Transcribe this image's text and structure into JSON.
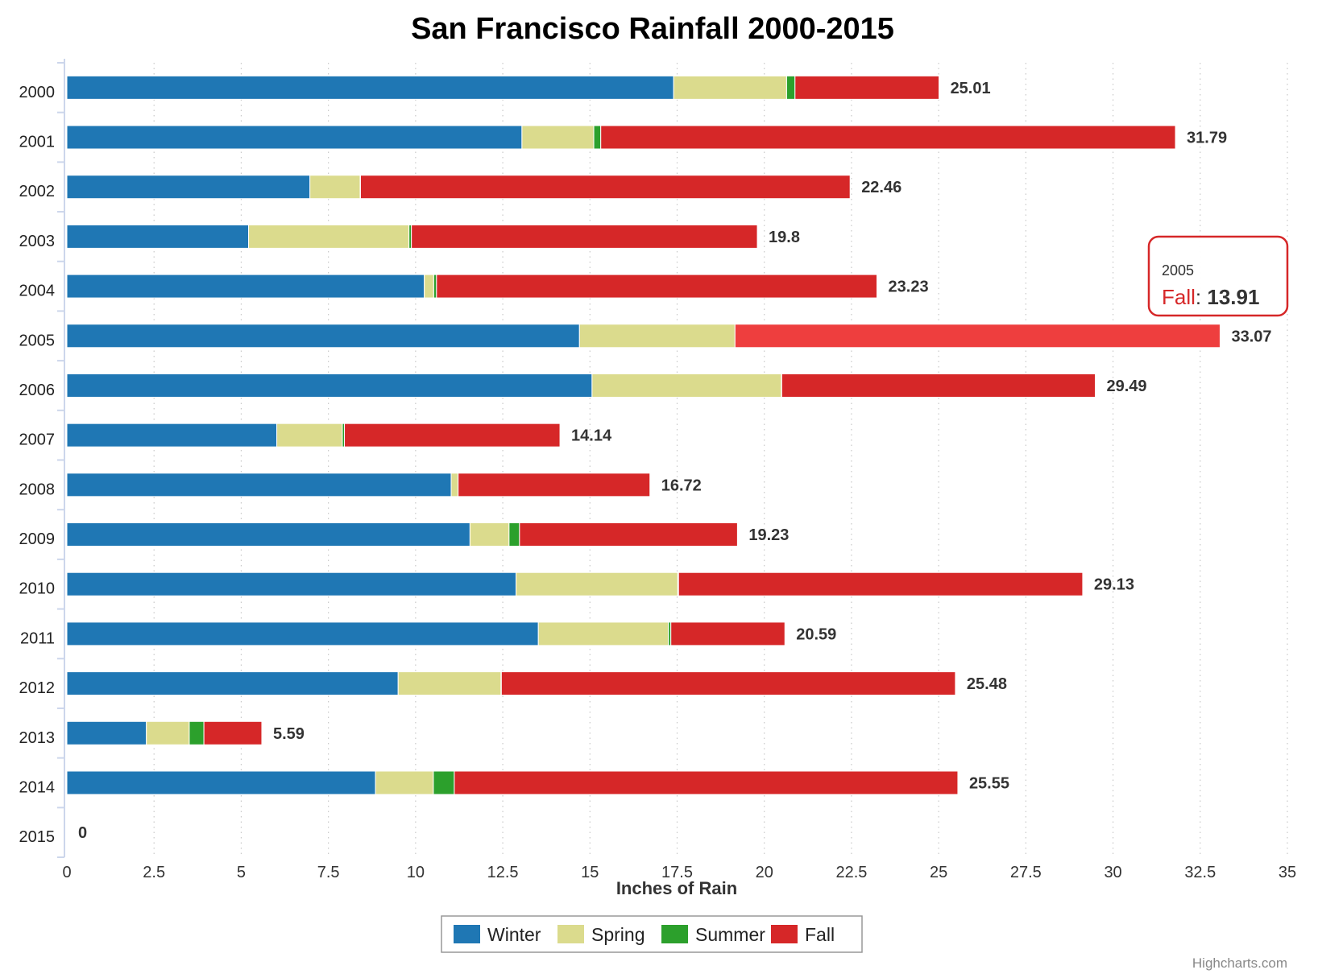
{
  "chart_data": {
    "type": "bar",
    "orientation": "horizontal",
    "stacked": true,
    "title": "San Francisco Rainfall 2000-2015",
    "xlabel": "Inches of Rain",
    "ylabel": "",
    "xlim": [
      0,
      35
    ],
    "x_ticks": [
      "0",
      "2.5",
      "5",
      "7.5",
      "10",
      "12.5",
      "15",
      "17.5",
      "20",
      "22.5",
      "25",
      "27.5",
      "30",
      "32.5",
      "35"
    ],
    "grid": "vertical dotted",
    "legend_position": "bottom-center",
    "categories": [
      "2000",
      "2001",
      "2002",
      "2003",
      "2004",
      "2005",
      "2006",
      "2007",
      "2008",
      "2009",
      "2010",
      "2011",
      "2012",
      "2013",
      "2014",
      "2015"
    ],
    "series": [
      {
        "name": "Winter",
        "color": "#1f77b4",
        "values": [
          17.4,
          13.05,
          6.97,
          5.21,
          10.25,
          14.7,
          15.06,
          6.02,
          11.02,
          11.56,
          12.88,
          13.52,
          9.5,
          2.28,
          8.85,
          0
        ]
      },
      {
        "name": "Spring",
        "color": "#dbdb8d",
        "values": [
          3.24,
          2.06,
          1.44,
          4.6,
          0.27,
          4.46,
          5.43,
          1.88,
          0.2,
          1.12,
          4.64,
          3.73,
          2.95,
          1.23,
          1.66,
          0
        ]
      },
      {
        "name": "Summer",
        "color": "#2ca02c",
        "values": [
          0.24,
          0.2,
          0.01,
          0.07,
          0.08,
          0.0,
          0.01,
          0.06,
          0.0,
          0.3,
          0.02,
          0.07,
          0.01,
          0.42,
          0.6,
          0
        ]
      },
      {
        "name": "Fall",
        "color": "#d62728",
        "values": [
          4.13,
          16.48,
          14.04,
          9.92,
          12.63,
          13.91,
          8.99,
          6.18,
          5.5,
          6.25,
          11.59,
          3.27,
          13.02,
          1.66,
          14.44,
          0
        ]
      }
    ],
    "totals": [
      "25.01",
      "31.79",
      "22.46",
      "19.8",
      "23.23",
      "33.07",
      "29.49",
      "14.14",
      "16.72",
      "19.23",
      "29.13",
      "20.59",
      "25.48",
      "5.59",
      "25.55",
      "0"
    ],
    "highlight": {
      "category": "2005",
      "series": "Fall",
      "color": "#ee3e3e"
    },
    "tooltip": {
      "category": "2005",
      "series": "Fall",
      "value": "13.91",
      "separator": ": "
    },
    "credit": "Highcharts.com"
  }
}
